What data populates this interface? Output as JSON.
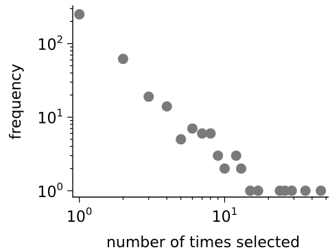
{
  "chart_data": {
    "type": "scatter",
    "title": "",
    "xlabel": "number of times selected",
    "ylabel": "frequency",
    "xscale": "log",
    "yscale": "log",
    "xlim": [
      0.9,
      52
    ],
    "ylim": [
      0.82,
      330
    ],
    "grid": false,
    "point_color": "#7a7a7a",
    "x_ticks": [
      {
        "value": 1,
        "base": "10",
        "exp": "0"
      },
      {
        "value": 10,
        "base": "10",
        "exp": "1"
      }
    ],
    "y_ticks": [
      {
        "value": 1,
        "base": "10",
        "exp": "0"
      },
      {
        "value": 10,
        "base": "10",
        "exp": "1"
      },
      {
        "value": 100,
        "base": "10",
        "exp": "2"
      }
    ],
    "points": [
      {
        "x": 1,
        "y": 250
      },
      {
        "x": 2,
        "y": 62
      },
      {
        "x": 3,
        "y": 19
      },
      {
        "x": 4,
        "y": 14
      },
      {
        "x": 5,
        "y": 5
      },
      {
        "x": 6,
        "y": 7
      },
      {
        "x": 7,
        "y": 6
      },
      {
        "x": 8,
        "y": 6
      },
      {
        "x": 9,
        "y": 3
      },
      {
        "x": 10,
        "y": 2
      },
      {
        "x": 12,
        "y": 3
      },
      {
        "x": 13,
        "y": 2
      },
      {
        "x": 15,
        "y": 1
      },
      {
        "x": 17,
        "y": 1
      },
      {
        "x": 24,
        "y": 1
      },
      {
        "x": 26,
        "y": 1
      },
      {
        "x": 29,
        "y": 1
      },
      {
        "x": 36,
        "y": 1
      },
      {
        "x": 46,
        "y": 1
      }
    ]
  }
}
